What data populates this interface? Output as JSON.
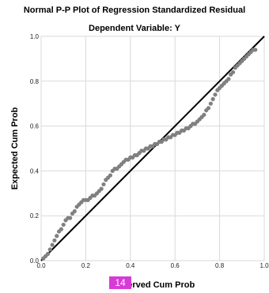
{
  "chart_data": {
    "type": "scatter",
    "title": "Normal P-P Plot of Regression Standardized Residual",
    "subtitle": "Dependent Variable: Y",
    "xlabel": "Observed Cum Prob",
    "ylabel": "Expected Cum Prob",
    "xlim": [
      0.0,
      1.0
    ],
    "ylim": [
      0.0,
      1.0
    ],
    "x_ticks": [
      "0.0",
      "0.2",
      "0.4",
      "0.6",
      "0.8",
      "1.0"
    ],
    "y_ticks": [
      "0.0",
      "0.2",
      "0.4",
      "0.6",
      "0.8",
      "1.0"
    ],
    "grid": true,
    "reference_line": {
      "from": [
        0,
        0
      ],
      "to": [
        1,
        1
      ]
    },
    "colors": {
      "points": "#808080",
      "reference_line": "#000000",
      "grid": "#d9d9d9"
    },
    "points": [
      [
        0.01,
        0.01
      ],
      [
        0.02,
        0.02
      ],
      [
        0.03,
        0.03
      ],
      [
        0.04,
        0.05
      ],
      [
        0.05,
        0.07
      ],
      [
        0.06,
        0.09
      ],
      [
        0.07,
        0.11
      ],
      [
        0.08,
        0.13
      ],
      [
        0.09,
        0.14
      ],
      [
        0.1,
        0.16
      ],
      [
        0.11,
        0.18
      ],
      [
        0.12,
        0.19
      ],
      [
        0.13,
        0.19
      ],
      [
        0.14,
        0.21
      ],
      [
        0.15,
        0.22
      ],
      [
        0.16,
        0.24
      ],
      [
        0.17,
        0.25
      ],
      [
        0.18,
        0.26
      ],
      [
        0.19,
        0.27
      ],
      [
        0.2,
        0.27
      ],
      [
        0.21,
        0.27
      ],
      [
        0.22,
        0.28
      ],
      [
        0.23,
        0.29
      ],
      [
        0.24,
        0.29
      ],
      [
        0.25,
        0.3
      ],
      [
        0.26,
        0.31
      ],
      [
        0.27,
        0.32
      ],
      [
        0.28,
        0.34
      ],
      [
        0.29,
        0.36
      ],
      [
        0.3,
        0.37
      ],
      [
        0.31,
        0.38
      ],
      [
        0.32,
        0.4
      ],
      [
        0.33,
        0.41
      ],
      [
        0.34,
        0.41
      ],
      [
        0.35,
        0.42
      ],
      [
        0.36,
        0.43
      ],
      [
        0.37,
        0.44
      ],
      [
        0.38,
        0.45
      ],
      [
        0.39,
        0.45
      ],
      [
        0.4,
        0.46
      ],
      [
        0.41,
        0.46
      ],
      [
        0.42,
        0.47
      ],
      [
        0.43,
        0.47
      ],
      [
        0.44,
        0.48
      ],
      [
        0.45,
        0.49
      ],
      [
        0.46,
        0.49
      ],
      [
        0.47,
        0.5
      ],
      [
        0.48,
        0.5
      ],
      [
        0.49,
        0.51
      ],
      [
        0.5,
        0.51
      ],
      [
        0.51,
        0.52
      ],
      [
        0.52,
        0.52
      ],
      [
        0.53,
        0.53
      ],
      [
        0.54,
        0.53
      ],
      [
        0.55,
        0.54
      ],
      [
        0.56,
        0.54
      ],
      [
        0.57,
        0.55
      ],
      [
        0.58,
        0.55
      ],
      [
        0.59,
        0.56
      ],
      [
        0.6,
        0.56
      ],
      [
        0.61,
        0.57
      ],
      [
        0.62,
        0.57
      ],
      [
        0.63,
        0.58
      ],
      [
        0.64,
        0.58
      ],
      [
        0.65,
        0.59
      ],
      [
        0.66,
        0.59
      ],
      [
        0.67,
        0.6
      ],
      [
        0.68,
        0.61
      ],
      [
        0.69,
        0.61
      ],
      [
        0.7,
        0.62
      ],
      [
        0.71,
        0.63
      ],
      [
        0.72,
        0.64
      ],
      [
        0.73,
        0.65
      ],
      [
        0.74,
        0.67
      ],
      [
        0.75,
        0.68
      ],
      [
        0.76,
        0.7
      ],
      [
        0.77,
        0.72
      ],
      [
        0.78,
        0.74
      ],
      [
        0.79,
        0.76
      ],
      [
        0.8,
        0.77
      ],
      [
        0.81,
        0.78
      ],
      [
        0.82,
        0.79
      ],
      [
        0.83,
        0.8
      ],
      [
        0.84,
        0.81
      ],
      [
        0.85,
        0.83
      ],
      [
        0.86,
        0.84
      ],
      [
        0.87,
        0.86
      ],
      [
        0.88,
        0.87
      ],
      [
        0.89,
        0.88
      ],
      [
        0.9,
        0.89
      ],
      [
        0.91,
        0.9
      ],
      [
        0.92,
        0.91
      ],
      [
        0.93,
        0.92
      ],
      [
        0.94,
        0.93
      ],
      [
        0.95,
        0.94
      ],
      [
        0.96,
        0.94
      ]
    ]
  },
  "page_badge": "14"
}
